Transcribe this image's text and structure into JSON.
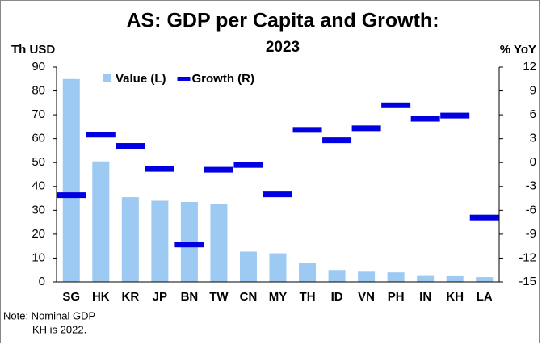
{
  "chart_data": {
    "type": "bar_line",
    "title": "AS: GDP per Capita and Growth:",
    "subtitle": "2023",
    "y_label": "Th USD",
    "y2_label": "% YoY",
    "categories": [
      "SG",
      "HK",
      "KR",
      "JP",
      "BN",
      "TW",
      "CN",
      "MY",
      "TH",
      "ID",
      "VN",
      "PH",
      "IN",
      "KH",
      "LA"
    ],
    "series": [
      {
        "name": "Value (L)",
        "color": "#9dcaf2",
        "axis": "y",
        "values": [
          85,
          50.5,
          35.5,
          34,
          33.5,
          32.5,
          12.7,
          12,
          7.8,
          5,
          4.3,
          4,
          2.5,
          2.4,
          2
        ]
      },
      {
        "name": "Growth (R)",
        "color": "#0000e0",
        "axis": "y2",
        "values": [
          -4.1,
          3.5,
          2.1,
          -0.8,
          -10.3,
          -0.9,
          -0.3,
          -4.0,
          4.1,
          2.8,
          4.3,
          7.2,
          5.5,
          5.9,
          -6.9
        ]
      }
    ],
    "ylim": [
      0,
      90
    ],
    "yticks": [
      0,
      10,
      20,
      30,
      40,
      50,
      60,
      70,
      80,
      90
    ],
    "y2lim": [
      -15,
      12
    ],
    "y2ticks": [
      -15,
      -12,
      -9,
      -6,
      -3,
      0,
      3,
      6,
      9,
      12
    ],
    "notes": [
      "Note: Nominal GDP",
      "KH is 2022."
    ]
  }
}
